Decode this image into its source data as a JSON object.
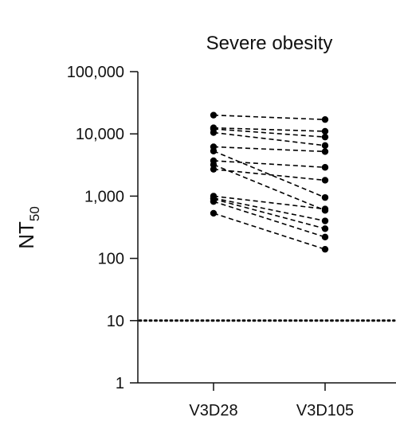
{
  "chart_data": {
    "type": "line",
    "title": "Severe obesity",
    "ylabel": "NT",
    "ylabel_subscript": "50",
    "xlabel": "",
    "y_scale": "log10",
    "ylim": [
      1,
      100000
    ],
    "y_ticks": [
      1,
      10,
      100,
      1000,
      10000,
      100000
    ],
    "y_tick_labels": [
      "1",
      "10",
      "100",
      "1,000",
      "10,000",
      "100,000"
    ],
    "categories": [
      "V3D28",
      "V3D105"
    ],
    "reference_line": {
      "y": 10,
      "style": "dotted"
    },
    "grid": false,
    "legend": "none",
    "line_style": "dashed",
    "marker": "filled-circle",
    "color": "#000000",
    "series": [
      {
        "values": [
          20000,
          17000
        ]
      },
      {
        "values": [
          12500,
          11000
        ]
      },
      {
        "values": [
          12000,
          8900
        ]
      },
      {
        "values": [
          10500,
          6500
        ]
      },
      {
        "values": [
          6200,
          5200
        ]
      },
      {
        "values": [
          5300,
          950
        ]
      },
      {
        "values": [
          3700,
          2900
        ]
      },
      {
        "values": [
          3200,
          590
        ]
      },
      {
        "values": [
          2700,
          1800
        ]
      },
      {
        "values": [
          1000,
          620
        ]
      },
      {
        "values": [
          930,
          400
        ]
      },
      {
        "values": [
          900,
          300
        ]
      },
      {
        "values": [
          820,
          220
        ]
      },
      {
        "values": [
          530,
          140
        ]
      }
    ]
  }
}
